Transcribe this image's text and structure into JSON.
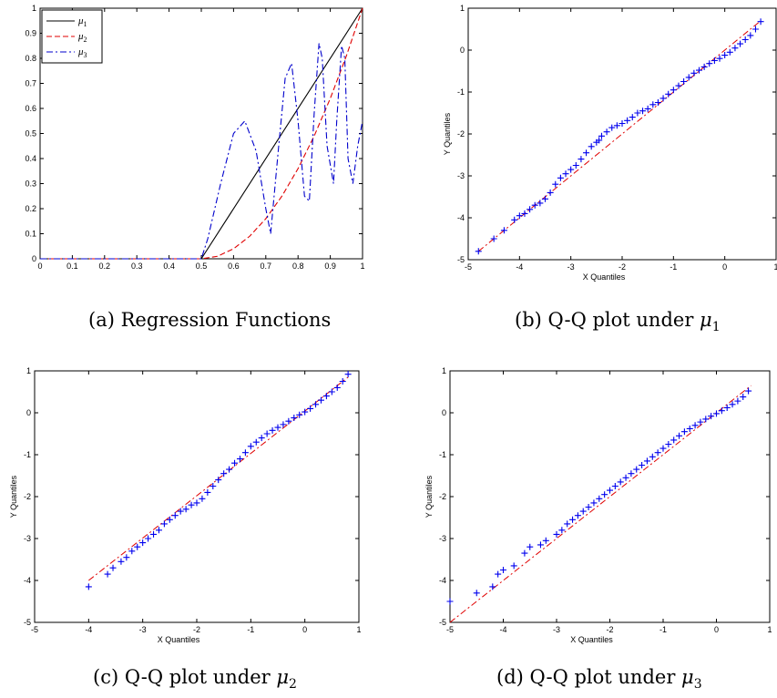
{
  "chart_data": [
    {
      "id": "a",
      "type": "line",
      "caption": "(a) Regression Functions",
      "xlim": [
        0,
        1
      ],
      "ylim": [
        0,
        1
      ],
      "xticks": [
        "0",
        "0.1",
        "0.2",
        "0.3",
        "0.4",
        "0.5",
        "0.6",
        "0.7",
        "0.8",
        "0.9",
        "1"
      ],
      "yticks": [
        "0",
        "0.1",
        "0.2",
        "0.3",
        "0.4",
        "0.5",
        "0.6",
        "0.7",
        "0.8",
        "0.9",
        "1"
      ],
      "legend": {
        "placement": "top-left"
      },
      "series": [
        {
          "name": "μ1",
          "color": "#000000",
          "style": "solid",
          "x": [
            0,
            0.5,
            1
          ],
          "y": [
            0,
            0,
            1
          ]
        },
        {
          "name": "μ2",
          "color": "#e00000",
          "style": "dashed",
          "x": [
            0,
            0.5,
            0.55,
            0.6,
            0.65,
            0.7,
            0.75,
            0.8,
            0.85,
            0.9,
            0.95,
            1
          ],
          "y": [
            0,
            0,
            0.01,
            0.04,
            0.09,
            0.16,
            0.25,
            0.36,
            0.49,
            0.64,
            0.81,
            1
          ]
        },
        {
          "name": "μ3",
          "color": "#0000cc",
          "style": "dashdot",
          "x": [
            0,
            0.5,
            0.52,
            0.56,
            0.6,
            0.635,
            0.67,
            0.7,
            0.715,
            0.74,
            0.76,
            0.78,
            0.8,
            0.82,
            0.835,
            0.85,
            0.865,
            0.875,
            0.89,
            0.91,
            0.92,
            0.935,
            0.945,
            0.955,
            0.97,
            0.985,
            1
          ],
          "y": [
            0,
            0,
            0.08,
            0.3,
            0.5,
            0.55,
            0.43,
            0.2,
            0.1,
            0.45,
            0.72,
            0.78,
            0.55,
            0.25,
            0.23,
            0.58,
            0.86,
            0.8,
            0.45,
            0.3,
            0.55,
            0.85,
            0.8,
            0.4,
            0.3,
            0.45,
            0.55
          ]
        }
      ]
    },
    {
      "id": "b",
      "type": "scatter",
      "caption_prefix": "(b) Q-Q plot under ",
      "caption_mu": "μ",
      "caption_sub": "1",
      "xlabel": "X Quantiles",
      "ylabel": "Y Quantiles",
      "xlim": [
        -5,
        1
      ],
      "ylim": [
        -5,
        1
      ],
      "xticks": [
        "-5",
        "-4",
        "-3",
        "-2",
        "-1",
        "0",
        "1"
      ],
      "yticks": [
        "-5",
        "-4",
        "-3",
        "-2",
        "-1",
        "0",
        "1"
      ],
      "ref_line": {
        "x": [
          -4.8,
          0.7
        ],
        "y": [
          -4.8,
          0.7
        ]
      },
      "points": {
        "x": [
          -4.8,
          -4.5,
          -4.3,
          -4.1,
          -4.0,
          -3.9,
          -3.8,
          -3.7,
          -3.6,
          -3.5,
          -3.4,
          -3.3,
          -3.2,
          -3.1,
          -3.0,
          -2.9,
          -2.8,
          -2.7,
          -2.6,
          -2.5,
          -2.45,
          -2.4,
          -2.3,
          -2.2,
          -2.1,
          -2.0,
          -1.9,
          -1.8,
          -1.7,
          -1.6,
          -1.5,
          -1.4,
          -1.3,
          -1.2,
          -1.1,
          -1.0,
          -0.9,
          -0.8,
          -0.7,
          -0.6,
          -0.5,
          -0.4,
          -0.3,
          -0.2,
          -0.1,
          0.0,
          0.1,
          0.2,
          0.3,
          0.4,
          0.5,
          0.6,
          0.7
        ],
        "y": [
          -4.8,
          -4.5,
          -4.3,
          -4.05,
          -3.95,
          -3.9,
          -3.8,
          -3.7,
          -3.65,
          -3.55,
          -3.4,
          -3.2,
          -3.05,
          -2.95,
          -2.85,
          -2.75,
          -2.6,
          -2.45,
          -2.3,
          -2.2,
          -2.15,
          -2.05,
          -1.95,
          -1.85,
          -1.8,
          -1.75,
          -1.68,
          -1.6,
          -1.5,
          -1.45,
          -1.4,
          -1.3,
          -1.25,
          -1.15,
          -1.05,
          -0.95,
          -0.85,
          -0.75,
          -0.65,
          -0.55,
          -0.48,
          -0.4,
          -0.32,
          -0.25,
          -0.2,
          -0.12,
          -0.05,
          0.05,
          0.15,
          0.25,
          0.35,
          0.5,
          0.68
        ]
      }
    },
    {
      "id": "c",
      "type": "scatter",
      "caption_prefix": "(c) Q-Q plot under ",
      "caption_mu": "μ",
      "caption_sub": "2",
      "xlabel": "X Quantiles",
      "ylabel": "Y Quantiles",
      "xlim": [
        -5,
        1
      ],
      "ylim": [
        -5,
        1
      ],
      "xticks": [
        "-5",
        "-4",
        "-3",
        "-2",
        "-1",
        "0",
        "1"
      ],
      "yticks": [
        "-5",
        "-4",
        "-3",
        "-2",
        "-1",
        "0",
        "1"
      ],
      "ref_line": {
        "x": [
          -4.0,
          0.8
        ],
        "y": [
          -4.0,
          0.85
        ]
      },
      "points": {
        "x": [
          -4.0,
          -3.65,
          -3.55,
          -3.4,
          -3.3,
          -3.2,
          -3.1,
          -3.0,
          -2.9,
          -2.8,
          -2.7,
          -2.6,
          -2.5,
          -2.4,
          -2.3,
          -2.2,
          -2.1,
          -2.0,
          -1.9,
          -1.8,
          -1.7,
          -1.6,
          -1.5,
          -1.4,
          -1.3,
          -1.2,
          -1.1,
          -1.0,
          -0.9,
          -0.8,
          -0.7,
          -0.6,
          -0.5,
          -0.4,
          -0.3,
          -0.2,
          -0.1,
          0.0,
          0.1,
          0.2,
          0.3,
          0.4,
          0.5,
          0.6,
          0.7,
          0.8
        ],
        "y": [
          -4.15,
          -3.85,
          -3.7,
          -3.55,
          -3.45,
          -3.3,
          -3.2,
          -3.1,
          -3.0,
          -2.9,
          -2.8,
          -2.65,
          -2.55,
          -2.45,
          -2.35,
          -2.3,
          -2.2,
          -2.15,
          -2.05,
          -1.9,
          -1.75,
          -1.6,
          -1.45,
          -1.35,
          -1.2,
          -1.1,
          -0.95,
          -0.8,
          -0.7,
          -0.6,
          -0.5,
          -0.42,
          -0.35,
          -0.28,
          -0.2,
          -0.12,
          -0.05,
          0.02,
          0.1,
          0.2,
          0.3,
          0.4,
          0.5,
          0.6,
          0.75,
          0.92
        ]
      }
    },
    {
      "id": "d",
      "type": "scatter",
      "caption_prefix": "(d) Q-Q plot under ",
      "caption_mu": "μ",
      "caption_sub": "3",
      "xlabel": "X Quantiles",
      "ylabel": "Y Quantiles",
      "xlim": [
        -5,
        1
      ],
      "ylim": [
        -5,
        1
      ],
      "xticks": [
        "-5",
        "-4",
        "-3",
        "-2",
        "-1",
        "0",
        "1"
      ],
      "yticks": [
        "-5",
        "-4",
        "-3",
        "-2",
        "-1",
        "0",
        "1"
      ],
      "ref_line": {
        "x": [
          -5.0,
          0.65
        ],
        "y": [
          -5.0,
          0.65
        ]
      },
      "points": {
        "x": [
          -5.0,
          -4.5,
          -4.2,
          -4.1,
          -4.0,
          -3.8,
          -3.6,
          -3.5,
          -3.3,
          -3.2,
          -3.0,
          -2.9,
          -2.8,
          -2.7,
          -2.6,
          -2.5,
          -2.4,
          -2.3,
          -2.2,
          -2.1,
          -2.0,
          -1.9,
          -1.8,
          -1.7,
          -1.6,
          -1.5,
          -1.4,
          -1.3,
          -1.2,
          -1.1,
          -1.0,
          -0.9,
          -0.8,
          -0.7,
          -0.6,
          -0.5,
          -0.4,
          -0.3,
          -0.2,
          -0.1,
          0.0,
          0.1,
          0.2,
          0.3,
          0.4,
          0.5,
          0.6
        ],
        "y": [
          -4.5,
          -4.3,
          -4.15,
          -3.85,
          -3.75,
          -3.65,
          -3.35,
          -3.2,
          -3.15,
          -3.05,
          -2.9,
          -2.8,
          -2.65,
          -2.55,
          -2.45,
          -2.35,
          -2.25,
          -2.15,
          -2.05,
          -1.95,
          -1.85,
          -1.75,
          -1.65,
          -1.55,
          -1.45,
          -1.35,
          -1.25,
          -1.15,
          -1.05,
          -0.95,
          -0.85,
          -0.75,
          -0.65,
          -0.55,
          -0.45,
          -0.38,
          -0.3,
          -0.22,
          -0.15,
          -0.08,
          -0.02,
          0.05,
          0.12,
          0.2,
          0.28,
          0.38,
          0.52
        ]
      }
    }
  ]
}
